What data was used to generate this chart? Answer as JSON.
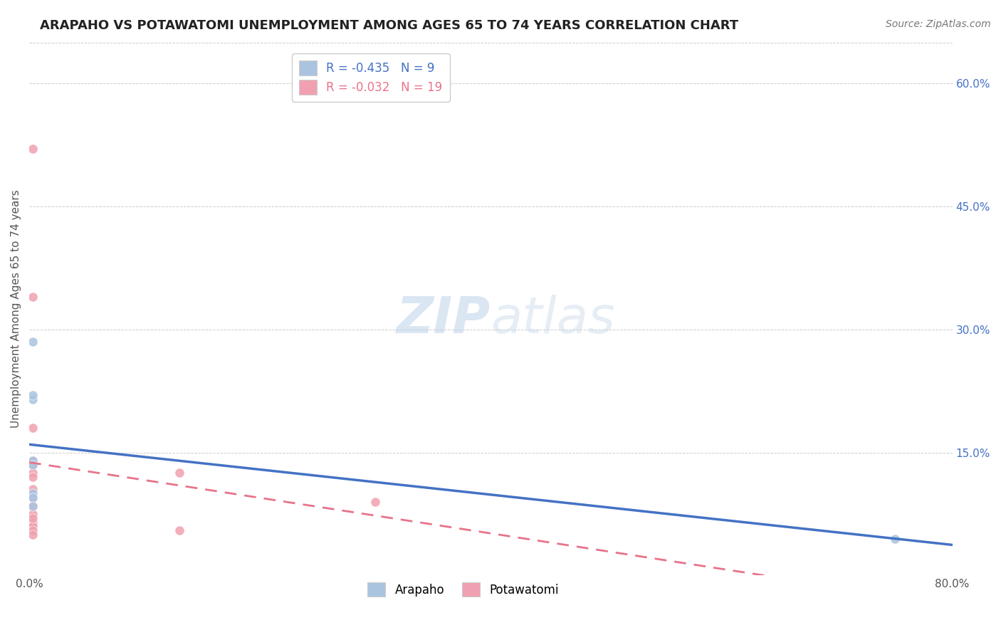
{
  "title": "ARAPAHO VS POTAWATOMI UNEMPLOYMENT AMONG AGES 65 TO 74 YEARS CORRELATION CHART",
  "source": "Source: ZipAtlas.com",
  "ylabel": "Unemployment Among Ages 65 to 74 years",
  "xlim": [
    0.0,
    0.8
  ],
  "ylim": [
    0.0,
    0.65
  ],
  "xticks": [
    0.0,
    0.1,
    0.2,
    0.3,
    0.4,
    0.5,
    0.6,
    0.7,
    0.8
  ],
  "yticks_right": [
    0.15,
    0.3,
    0.45,
    0.6
  ],
  "yticklabels_right": [
    "15.0%",
    "30.0%",
    "45.0%",
    "60.0%"
  ],
  "arapaho_x": [
    0.003,
    0.003,
    0.003,
    0.003,
    0.003,
    0.003,
    0.003,
    0.003,
    0.75
  ],
  "arapaho_y": [
    0.285,
    0.215,
    0.14,
    0.135,
    0.1,
    0.095,
    0.085,
    0.22,
    0.045
  ],
  "potawatomi_x": [
    0.003,
    0.003,
    0.003,
    0.003,
    0.003,
    0.003,
    0.003,
    0.003,
    0.003,
    0.003,
    0.003,
    0.003,
    0.003,
    0.003,
    0.003,
    0.13,
    0.13,
    0.3,
    0.003
  ],
  "potawatomi_y": [
    0.52,
    0.34,
    0.18,
    0.14,
    0.135,
    0.125,
    0.12,
    0.105,
    0.095,
    0.085,
    0.075,
    0.065,
    0.06,
    0.055,
    0.05,
    0.125,
    0.055,
    0.09,
    0.07
  ],
  "arapaho_color": "#aac4e0",
  "potawatomi_color": "#f0a0b0",
  "arapaho_line_color": "#4472C4",
  "potawatomi_line_color": "#e8738a",
  "r_arapaho": -0.435,
  "n_arapaho": 9,
  "r_potawatomi": -0.032,
  "n_potawatomi": 19,
  "watermark_zip": "ZIP",
  "watermark_atlas": "atlas",
  "dot_size": 90,
  "title_fontsize": 13,
  "axis_label_fontsize": 11,
  "tick_fontsize": 11,
  "legend_fontsize": 12,
  "source_fontsize": 10,
  "background_color": "#ffffff"
}
